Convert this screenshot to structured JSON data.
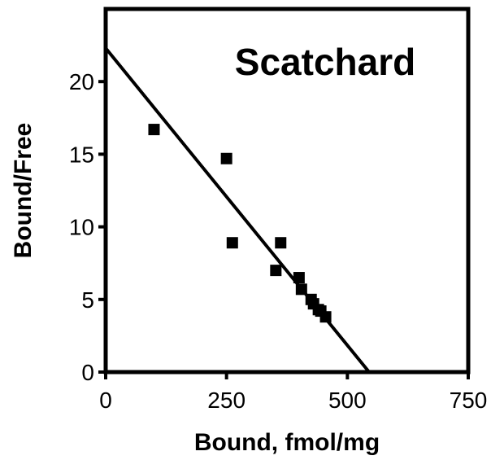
{
  "chart_data": {
    "type": "scatter",
    "title": "Scatchard",
    "xlabel": "Bound, fmol/mg",
    "ylabel": "Bound/Free",
    "xlim": [
      0,
      750
    ],
    "ylim": [
      0,
      25
    ],
    "xticks": [
      0,
      250,
      500,
      750
    ],
    "yticks": [
      0,
      5,
      10,
      15,
      20
    ],
    "xtick_labels": [
      "0",
      "250",
      "500",
      "750"
    ],
    "ytick_labels": [
      "0",
      "5",
      "10",
      "15",
      "20"
    ],
    "grid": false,
    "legend": "none",
    "colors": {
      "marker": "#000000",
      "line": "#000000",
      "axes": "#000000"
    },
    "series": [
      {
        "kind": "points",
        "marker": "square",
        "x": [
          100,
          250,
          262,
          352,
          362,
          400,
          405,
          425,
          430,
          440,
          445,
          455
        ],
        "y": [
          16.7,
          14.7,
          8.9,
          7.0,
          8.9,
          6.5,
          5.7,
          5.0,
          4.7,
          4.3,
          4.2,
          3.8
        ]
      },
      {
        "kind": "fit-line",
        "x": [
          0,
          545
        ],
        "y": [
          22.3,
          0
        ]
      }
    ]
  }
}
